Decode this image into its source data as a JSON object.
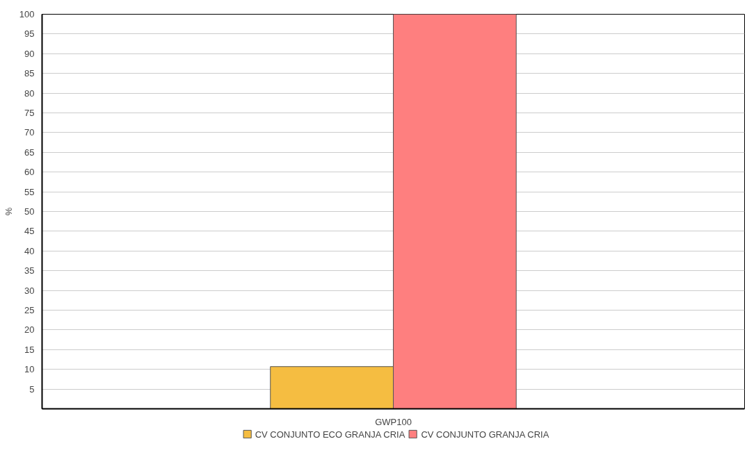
{
  "chart_data": {
    "type": "bar",
    "ylabel": "%",
    "categories": [
      "GWP100"
    ],
    "series": [
      {
        "name": "CV CONJUNTO ECO GRANJA CRIA",
        "color": "#f5bd41",
        "values": [
          10.7
        ]
      },
      {
        "name": "CV CONJUNTO GRANJA CRIA",
        "color": "#fe7f7f",
        "values": [
          100
        ]
      }
    ],
    "ylim": [
      0,
      100
    ],
    "yticks": [
      5,
      10,
      15,
      20,
      25,
      30,
      35,
      40,
      45,
      50,
      55,
      60,
      65,
      70,
      75,
      80,
      85,
      90,
      95,
      100
    ],
    "grid": "y",
    "legend": "bottom"
  }
}
